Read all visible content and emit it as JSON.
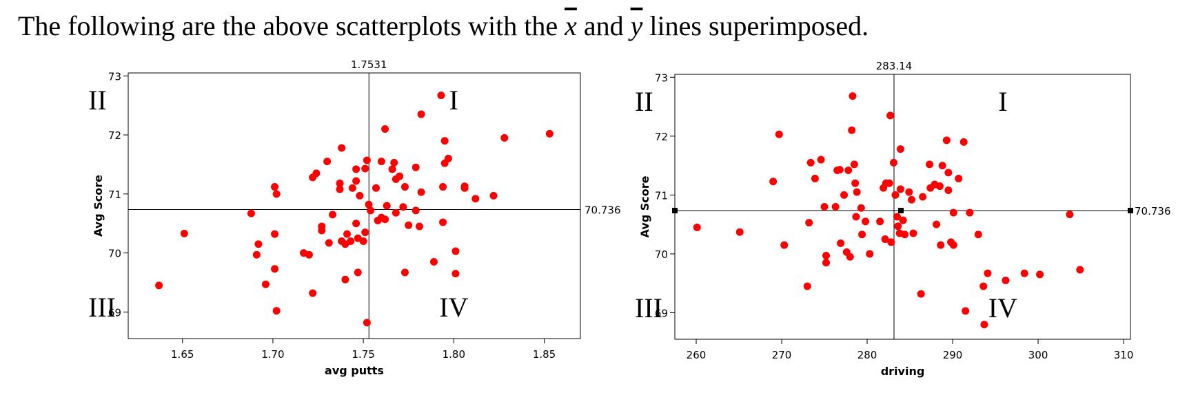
{
  "heading": {
    "prefix": "The following are the above scatterplots with the ",
    "xbar": "x",
    "middle": " and ",
    "ybar": "y",
    "suffix": " lines superimposed."
  },
  "colors": {
    "points": "#ff0000",
    "lines": "#000000"
  },
  "chart_data": [
    {
      "type": "scatter",
      "xlabel": "avg putts",
      "ylabel": "Avg Score",
      "xlim": [
        1.62,
        1.87
      ],
      "ylim": [
        68.55,
        73.05
      ],
      "xticks": [
        1.65,
        1.7,
        1.75,
        1.8,
        1.85
      ],
      "xtick_labels": [
        "1.65",
        "1.70",
        "1.75",
        "1.80",
        "1.85"
      ],
      "yticks": [
        70,
        71,
        72,
        73
      ],
      "ytick_labels": [
        "70",
        "71",
        "72",
        "73"
      ],
      "partial_ytick_label": "69",
      "vline": {
        "value": 1.7531,
        "label": "1.7531"
      },
      "hline": {
        "value": 70.736,
        "label": "70.736"
      },
      "quadrant_labels": {
        "I": "I",
        "II": "II",
        "III": "III",
        "IV": "IV"
      },
      "grid": false,
      "points": [
        [
          1.637,
          69.45
        ],
        [
          1.651,
          70.33
        ],
        [
          1.688,
          70.67
        ],
        [
          1.691,
          69.97
        ],
        [
          1.692,
          70.15
        ],
        [
          1.696,
          69.47
        ],
        [
          1.701,
          71.12
        ],
        [
          1.702,
          71.0
        ],
        [
          1.701,
          70.32
        ],
        [
          1.701,
          69.73
        ],
        [
          1.702,
          69.02
        ],
        [
          1.717,
          70.0
        ],
        [
          1.72,
          69.97
        ],
        [
          1.722,
          69.32
        ],
        [
          1.722,
          71.28
        ],
        [
          1.724,
          71.35
        ],
        [
          1.727,
          70.45
        ],
        [
          1.727,
          70.38
        ],
        [
          1.73,
          71.55
        ],
        [
          1.731,
          70.17
        ],
        [
          1.733,
          70.65
        ],
        [
          1.737,
          71.18
        ],
        [
          1.737,
          71.08
        ],
        [
          1.738,
          71.78
        ],
        [
          1.738,
          70.2
        ],
        [
          1.74,
          70.15
        ],
        [
          1.74,
          69.55
        ],
        [
          1.741,
          70.32
        ],
        [
          1.743,
          70.2
        ],
        [
          1.744,
          71.1
        ],
        [
          1.746,
          71.42
        ],
        [
          1.746,
          71.22
        ],
        [
          1.746,
          70.5
        ],
        [
          1.747,
          70.25
        ],
        [
          1.747,
          69.67
        ],
        [
          1.748,
          70.97
        ],
        [
          1.75,
          70.2
        ],
        [
          1.751,
          71.43
        ],
        [
          1.752,
          71.57
        ],
        [
          1.751,
          70.35
        ],
        [
          1.753,
          70.82
        ],
        [
          1.754,
          70.72
        ],
        [
          1.752,
          68.82
        ],
        [
          1.757,
          71.1
        ],
        [
          1.758,
          70.55
        ],
        [
          1.76,
          71.55
        ],
        [
          1.76,
          70.6
        ],
        [
          1.762,
          70.57
        ],
        [
          1.762,
          72.1
        ],
        [
          1.763,
          70.8
        ],
        [
          1.766,
          71.42
        ],
        [
          1.767,
          71.53
        ],
        [
          1.768,
          71.25
        ],
        [
          1.768,
          70.68
        ],
        [
          1.77,
          71.3
        ],
        [
          1.772,
          70.78
        ],
        [
          1.773,
          71.12
        ],
        [
          1.773,
          69.67
        ],
        [
          1.775,
          70.47
        ],
        [
          1.779,
          71.45
        ],
        [
          1.779,
          70.72
        ],
        [
          1.781,
          70.45
        ],
        [
          1.782,
          72.35
        ],
        [
          1.782,
          71.03
        ],
        [
          1.789,
          69.85
        ],
        [
          1.793,
          72.67
        ],
        [
          1.794,
          71.12
        ],
        [
          1.794,
          70.52
        ],
        [
          1.795,
          71.9
        ],
        [
          1.795,
          71.52
        ],
        [
          1.797,
          71.6
        ],
        [
          1.801,
          70.03
        ],
        [
          1.801,
          69.65
        ],
        [
          1.806,
          71.13
        ],
        [
          1.806,
          71.1
        ],
        [
          1.812,
          70.92
        ],
        [
          1.822,
          70.97
        ],
        [
          1.828,
          71.95
        ],
        [
          1.853,
          72.02
        ]
      ]
    },
    {
      "type": "scatter",
      "xlabel": "driving",
      "ylabel": "Avg Score",
      "xlim": [
        257.5,
        310.8
      ],
      "ylim": [
        68.55,
        73.05
      ],
      "xticks": [
        260,
        270,
        280,
        290,
        300,
        310
      ],
      "xtick_labels": [
        "260",
        "270",
        "280",
        "290",
        "300",
        "310"
      ],
      "yticks": [
        70,
        71,
        72,
        73
      ],
      "ytick_labels": [
        "70",
        "71",
        "72",
        "73"
      ],
      "partial_ytick_label": "69",
      "vline": {
        "value": 283.14,
        "label": "283.14"
      },
      "hline": {
        "value": 70.736,
        "label": "70.736"
      },
      "quadrant_labels": {
        "I": "I",
        "II": "II",
        "III": "III",
        "IV": "IV"
      },
      "grid": false,
      "points": [
        [
          260.1,
          70.45
        ],
        [
          265.1,
          70.37
        ],
        [
          269.0,
          71.23
        ],
        [
          269.7,
          72.03
        ],
        [
          270.3,
          70.15
        ],
        [
          273.0,
          69.45
        ],
        [
          273.2,
          70.53
        ],
        [
          273.4,
          71.55
        ],
        [
          273.9,
          71.28
        ],
        [
          274.6,
          71.6
        ],
        [
          275.0,
          70.8
        ],
        [
          275.2,
          69.97
        ],
        [
          275.2,
          69.85
        ],
        [
          276.3,
          70.8
        ],
        [
          276.5,
          71.42
        ],
        [
          276.8,
          71.43
        ],
        [
          276.9,
          70.18
        ],
        [
          277.3,
          71.0
        ],
        [
          277.6,
          70.03
        ],
        [
          277.8,
          71.42
        ],
        [
          278.0,
          69.95
        ],
        [
          278.2,
          72.1
        ],
        [
          278.3,
          72.68
        ],
        [
          278.5,
          71.52
        ],
        [
          278.6,
          71.2
        ],
        [
          278.7,
          70.63
        ],
        [
          278.8,
          71.05
        ],
        [
          279.3,
          70.78
        ],
        [
          279.4,
          70.33
        ],
        [
          279.8,
          70.55
        ],
        [
          280.3,
          70.0
        ],
        [
          281.5,
          70.55
        ],
        [
          281.9,
          71.12
        ],
        [
          282.1,
          70.25
        ],
        [
          282.2,
          71.2
        ],
        [
          282.6,
          71.2
        ],
        [
          282.7,
          72.35
        ],
        [
          282.8,
          70.2
        ],
        [
          283.1,
          71.55
        ],
        [
          283.3,
          71.0
        ],
        [
          283.5,
          70.63
        ],
        [
          283.6,
          70.47
        ],
        [
          283.8,
          70.35
        ],
        [
          283.9,
          71.78
        ],
        [
          283.9,
          71.1
        ],
        [
          284.2,
          70.57
        ],
        [
          284.4,
          70.33
        ],
        [
          284.9,
          71.05
        ],
        [
          285.2,
          70.92
        ],
        [
          285.4,
          70.35
        ],
        [
          286.3,
          69.32
        ],
        [
          286.5,
          70.97
        ],
        [
          287.3,
          71.52
        ],
        [
          287.4,
          71.12
        ],
        [
          287.9,
          71.18
        ],
        [
          288.1,
          70.5
        ],
        [
          288.5,
          71.15
        ],
        [
          288.6,
          70.15
        ],
        [
          288.8,
          71.5
        ],
        [
          289.3,
          71.93
        ],
        [
          289.5,
          71.38
        ],
        [
          289.5,
          71.08
        ],
        [
          289.8,
          70.2
        ],
        [
          290.1,
          70.15
        ],
        [
          290.1,
          70.7
        ],
        [
          290.7,
          71.28
        ],
        [
          291.3,
          71.9
        ],
        [
          291.5,
          69.03
        ],
        [
          292.0,
          70.7
        ],
        [
          293.0,
          70.33
        ],
        [
          293.6,
          69.45
        ],
        [
          293.7,
          68.8
        ],
        [
          294.1,
          69.67
        ],
        [
          296.2,
          69.55
        ],
        [
          298.4,
          69.67
        ],
        [
          300.2,
          69.65
        ],
        [
          303.7,
          70.67
        ],
        [
          304.9,
          69.73
        ]
      ]
    }
  ]
}
